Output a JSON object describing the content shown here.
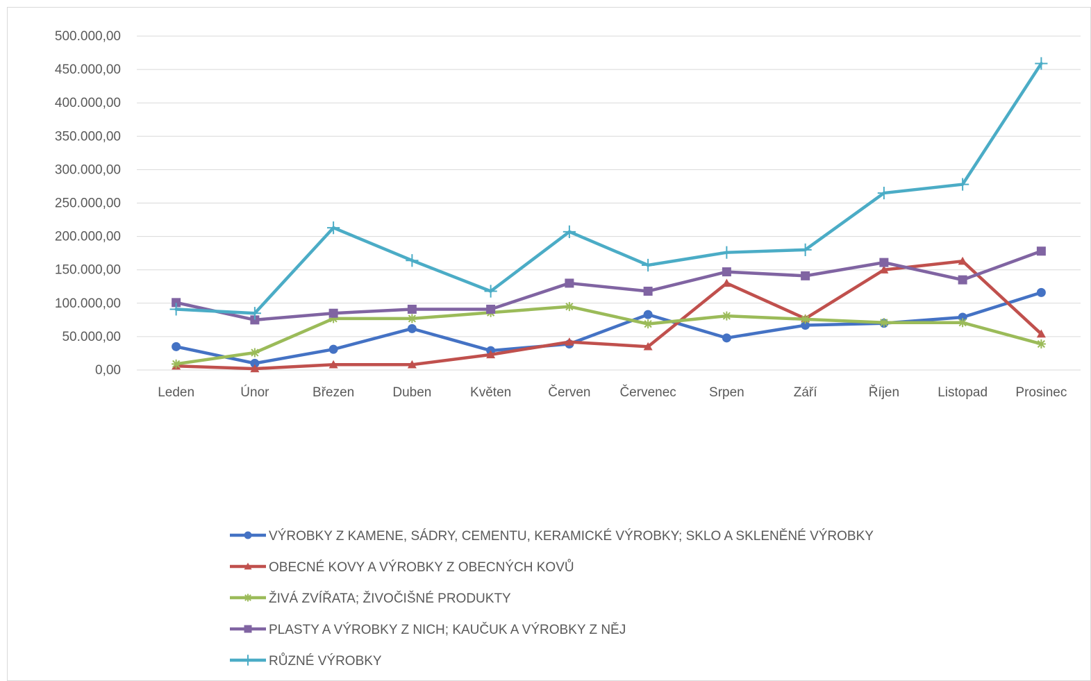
{
  "chart_data": {
    "type": "line",
    "title": "",
    "xlabel": "",
    "ylabel": "",
    "categories": [
      "Leden",
      "Únor",
      "Březen",
      "Duben",
      "Květen",
      "Červen",
      "Červenec",
      "Srpen",
      "Září",
      "Říjen",
      "Listopad",
      "Prosinec"
    ],
    "ylim": [
      0,
      500000
    ],
    "y_ticks": [
      0,
      50000,
      100000,
      150000,
      200000,
      250000,
      300000,
      350000,
      400000,
      450000,
      500000
    ],
    "y_tick_labels": [
      "0,00",
      "50.000,00",
      "100.000,00",
      "150.000,00",
      "200.000,00",
      "250.000,00",
      "300.000,00",
      "350.000,00",
      "400.000,00",
      "450.000,00",
      "500.000,00"
    ],
    "grid": true,
    "legend_position": "bottom",
    "series": [
      {
        "name": "VÝROBKY Z KAMENE, SÁDRY, CEMENTU, KERAMICKÉ VÝROBKY; SKLO A SKLENĚNÉ VÝROBKY",
        "color": "#4472c4",
        "marker": "circle",
        "values": [
          35000,
          10000,
          31000,
          62000,
          29000,
          39000,
          83000,
          48000,
          67000,
          70000,
          79000,
          116000
        ]
      },
      {
        "name": "OBECNÉ KOVY A VÝROBKY Z OBECNÝCH KOVŮ",
        "color": "#c0504d",
        "marker": "triangle",
        "values": [
          6000,
          2000,
          8000,
          8000,
          23000,
          42000,
          35000,
          130000,
          77000,
          150000,
          163000,
          54000
        ]
      },
      {
        "name": "ŽIVÁ ZVÍŘATA; ŽIVOČIŠNÉ PRODUKTY",
        "color": "#9bbb59",
        "marker": "star",
        "values": [
          9000,
          26000,
          77000,
          77000,
          86000,
          95000,
          69000,
          81000,
          76000,
          71000,
          71000,
          39000
        ]
      },
      {
        "name": "PLASTY A VÝROBKY Z NICH; KAUČUK A VÝROBKY Z NĚJ",
        "color": "#8064a2",
        "marker": "square",
        "values": [
          101000,
          75000,
          85000,
          91000,
          91000,
          130000,
          118000,
          147000,
          141000,
          161000,
          135000,
          178000
        ]
      },
      {
        "name": "RŮZNÉ VÝROBKY",
        "color": "#4bacc6",
        "marker": "plus",
        "values": [
          91000,
          85000,
          213000,
          164000,
          118000,
          207000,
          157000,
          176000,
          180000,
          265000,
          278000,
          459000
        ]
      }
    ]
  },
  "colors": {
    "gridline": "#d9d9d9",
    "axis_text": "#595959"
  }
}
